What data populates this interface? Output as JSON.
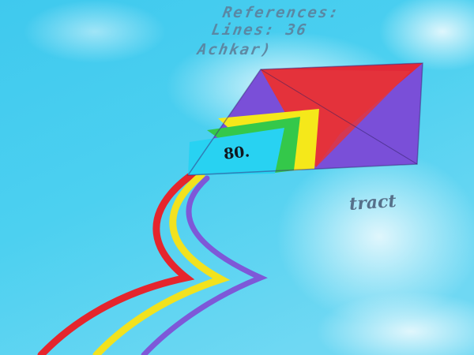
{
  "overlay_text": {
    "line1": "References:",
    "line2": "Lines:  36",
    "line3": "Achkar)",
    "side_word": "tract",
    "kite_label": "80."
  },
  "colors": {
    "sky": "#34c4ea",
    "sky_light": "#bfeefa",
    "kite_purple": "#7a4fd8",
    "kite_red": "#e8262e",
    "kite_yellow": "#f5e81a",
    "kite_green": "#34c84a",
    "kite_cyan": "#28d2f2",
    "text": "#5c7f9a"
  }
}
